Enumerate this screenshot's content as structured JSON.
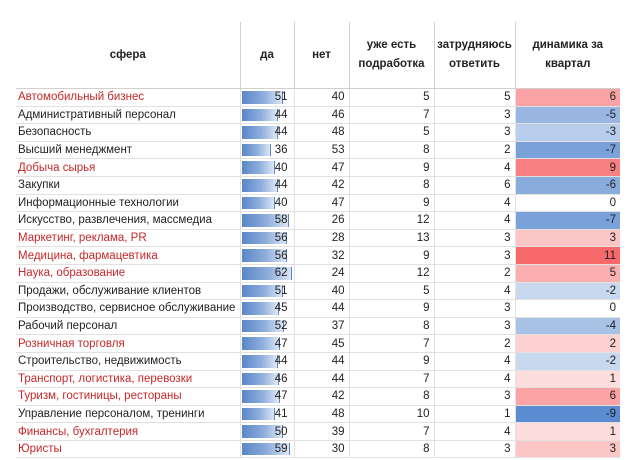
{
  "table": {
    "headers": {
      "sphere": "сфера",
      "yes": "да",
      "no": "нет",
      "side_job": "уже есть подработка",
      "unsure": "затрудняюсь ответить",
      "dynamics": "динамика за квартал"
    },
    "bar_max": 62,
    "colors": {
      "highlight_text": "#c62828",
      "negative": "#5b8bd0",
      "positive": "#f8696b"
    },
    "rows": [
      {
        "sphere": "Автомобильный бизнес",
        "highlight": true,
        "yes": 51,
        "no": 40,
        "side_job": 5,
        "unsure": 5,
        "dynamics": 6
      },
      {
        "sphere": "Административный персонал",
        "highlight": false,
        "yes": 44,
        "no": 46,
        "side_job": 7,
        "unsure": 3,
        "dynamics": -5
      },
      {
        "sphere": "Безопасность",
        "highlight": false,
        "yes": 44,
        "no": 48,
        "side_job": 5,
        "unsure": 3,
        "dynamics": -3
      },
      {
        "sphere": "Высший менеджмент",
        "highlight": false,
        "yes": 36,
        "no": 53,
        "side_job": 8,
        "unsure": 2,
        "dynamics": -7
      },
      {
        "sphere": "Добыча сырья",
        "highlight": true,
        "yes": 40,
        "no": 47,
        "side_job": 9,
        "unsure": 4,
        "dynamics": 9
      },
      {
        "sphere": "Закупки",
        "highlight": false,
        "yes": 44,
        "no": 42,
        "side_job": 8,
        "unsure": 6,
        "dynamics": -6
      },
      {
        "sphere": "Информационные технологии",
        "highlight": false,
        "yes": 40,
        "no": 47,
        "side_job": 9,
        "unsure": 4,
        "dynamics": 0
      },
      {
        "sphere": "Искусство, развлечения, массмедиа",
        "highlight": false,
        "yes": 58,
        "no": 26,
        "side_job": 12,
        "unsure": 4,
        "dynamics": -7
      },
      {
        "sphere": "Маркетинг, реклама, PR",
        "highlight": true,
        "yes": 56,
        "no": 28,
        "side_job": 13,
        "unsure": 3,
        "dynamics": 3
      },
      {
        "sphere": "Медицина, фармацевтика",
        "highlight": true,
        "yes": 56,
        "no": 32,
        "side_job": 9,
        "unsure": 3,
        "dynamics": 11
      },
      {
        "sphere": "Наука, образование",
        "highlight": true,
        "yes": 62,
        "no": 24,
        "side_job": 12,
        "unsure": 2,
        "dynamics": 5
      },
      {
        "sphere": "Продажи, обслуживание клиентов",
        "highlight": false,
        "yes": 51,
        "no": 40,
        "side_job": 5,
        "unsure": 4,
        "dynamics": -2
      },
      {
        "sphere": "Производство, сервисное обслуживание",
        "highlight": false,
        "yes": 45,
        "no": 44,
        "side_job": 9,
        "unsure": 3,
        "dynamics": 0
      },
      {
        "sphere": "Рабочий персонал",
        "highlight": false,
        "yes": 52,
        "no": 37,
        "side_job": 8,
        "unsure": 3,
        "dynamics": -4
      },
      {
        "sphere": "Розничная торговля",
        "highlight": true,
        "yes": 47,
        "no": 45,
        "side_job": 7,
        "unsure": 2,
        "dynamics": 2
      },
      {
        "sphere": "Строительство, недвижимость",
        "highlight": false,
        "yes": 44,
        "no": 44,
        "side_job": 9,
        "unsure": 4,
        "dynamics": -2
      },
      {
        "sphere": "Транспорт, логистика, перевозки",
        "highlight": true,
        "yes": 46,
        "no": 44,
        "side_job": 7,
        "unsure": 4,
        "dynamics": 1
      },
      {
        "sphere": "Туризм, гостиницы, рестораны",
        "highlight": true,
        "yes": 47,
        "no": 42,
        "side_job": 8,
        "unsure": 3,
        "dynamics": 6
      },
      {
        "sphere": "Управление персоналом, тренинги",
        "highlight": false,
        "yes": 41,
        "no": 48,
        "side_job": 10,
        "unsure": 1,
        "dynamics": -9
      },
      {
        "sphere": "Финансы, бухгалтерия",
        "highlight": true,
        "yes": 50,
        "no": 39,
        "side_job": 7,
        "unsure": 4,
        "dynamics": 1
      },
      {
        "sphere": "Юристы",
        "highlight": true,
        "yes": 59,
        "no": 30,
        "side_job": 8,
        "unsure": 3,
        "dynamics": 3
      }
    ]
  }
}
